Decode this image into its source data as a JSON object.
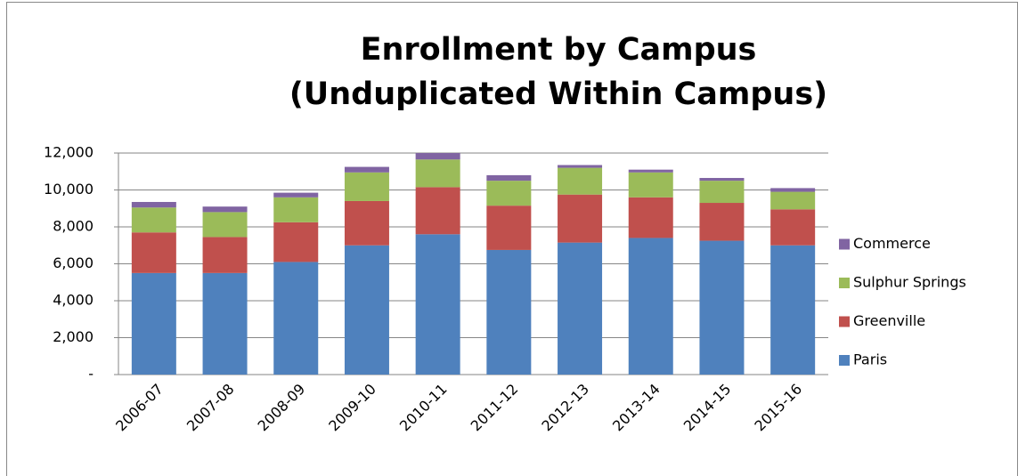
{
  "chart_data": {
    "type": "stacked_bar",
    "title": [
      "Enrollment by Campus",
      "(Unduplicated Within Campus)"
    ],
    "categories": [
      "2006-07",
      "2007-08",
      "2008-09",
      "2009-10",
      "2010-11",
      "2011-12",
      "2012-13",
      "2013-14",
      "2014-15",
      "2015-16"
    ],
    "series": [
      {
        "name": "Paris",
        "color": "#4f81bd",
        "values": [
          5500,
          5500,
          6100,
          7000,
          7600,
          6750,
          7150,
          7400,
          7250,
          7000
        ]
      },
      {
        "name": "Greenville",
        "color": "#c0504d",
        "values": [
          2200,
          1950,
          2150,
          2400,
          2550,
          2400,
          2600,
          2200,
          2050,
          1950
        ]
      },
      {
        "name": "Sulphur Springs",
        "color": "#9bbb59",
        "values": [
          1350,
          1350,
          1350,
          1550,
          1500,
          1350,
          1450,
          1350,
          1200,
          950
        ]
      },
      {
        "name": "Commerce",
        "color": "#8064a2",
        "values": [
          300,
          300,
          250,
          300,
          350,
          300,
          150,
          150,
          150,
          200
        ]
      }
    ],
    "ylim": [
      0,
      12000
    ],
    "yticks": [
      {
        "value": 0,
        "label": "-"
      },
      {
        "value": 2000,
        "label": "2,000"
      },
      {
        "value": 4000,
        "label": "4,000"
      },
      {
        "value": 6000,
        "label": "6,000"
      },
      {
        "value": 8000,
        "label": "8,000"
      },
      {
        "value": 10000,
        "label": "10,000"
      },
      {
        "value": 12000,
        "label": "12,000"
      }
    ],
    "grid": true,
    "legend": "right"
  }
}
